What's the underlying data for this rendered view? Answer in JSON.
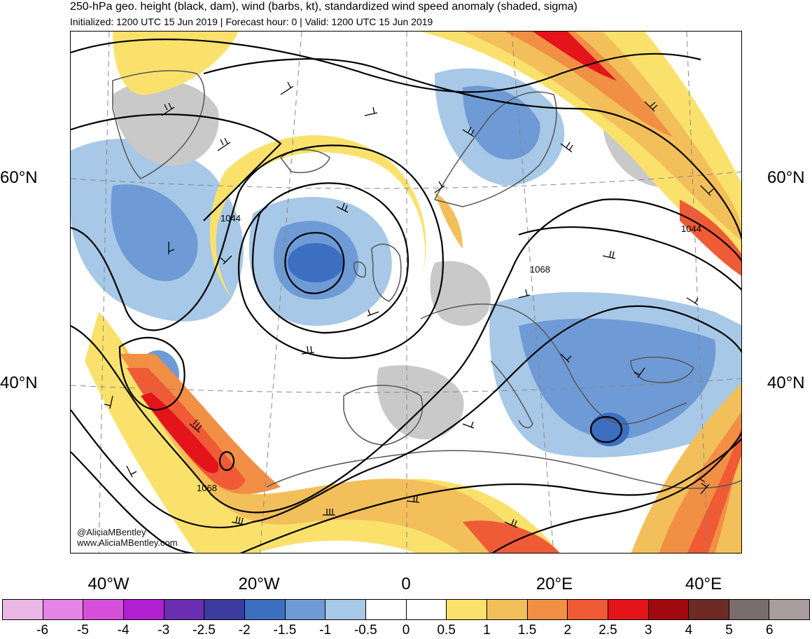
{
  "title": "250-hPa geo. height (black, dam), wind (barbs, kt), standardized wind speed anomaly (shaded, sigma)",
  "subtitle": "Initialized: 1200 UTC 15 Jun 2019 | Forecast hour: 0 | Valid: 1200 UTC 15 Jun 2019",
  "lat_labels": {
    "left_60": "60°N",
    "right_60": "60°N",
    "left_40": "40°N",
    "right_40": "40°N"
  },
  "lon_labels": [
    "40°W",
    "20°W",
    "0",
    "20°E",
    "40°E"
  ],
  "contour_labels": [
    "1044",
    "1044",
    "1068",
    "1068"
  ],
  "credit": {
    "handle": "@AliciaMBentley",
    "website": "www.AliciaMBentley.com"
  },
  "colorbar": {
    "colors": [
      "#ebb8e6",
      "#e584e6",
      "#d54fdb",
      "#b01fd0",
      "#6a2fb0",
      "#3b3ba0",
      "#3d6fc1",
      "#6e9bd6",
      "#a7c8e6",
      "#ffffff",
      "#ffffff",
      "#f9e16c",
      "#f2bf5a",
      "#f18f45",
      "#ee5b35",
      "#e3141a",
      "#a1090f",
      "#6e2a24",
      "#7a6d6d",
      "#a89c9c"
    ],
    "tick_labels": [
      "-6",
      "-5",
      "-4",
      "-3",
      "-2.5",
      "-2",
      "-1.5",
      "-1",
      "-0.5",
      "0",
      "0.5",
      "1",
      "1.5",
      "2",
      "2.5",
      "3",
      "4",
      "5",
      "6"
    ]
  }
}
